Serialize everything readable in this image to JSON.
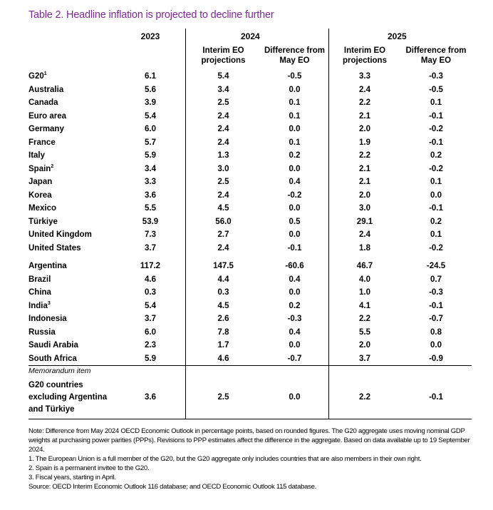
{
  "title": "Table 2. Headline inflation is projected to decline further",
  "years": {
    "y2023": "2023",
    "y2024": "2024",
    "y2025": "2025"
  },
  "sub": {
    "interim_1": "Interim EO",
    "interim_2": "projections",
    "diff_1": "Difference from",
    "diff_2": "May EO"
  },
  "group1": [
    {
      "name": "G20",
      "sup": "1",
      "indent": false,
      "v2023": "6.1",
      "p2024": "5.4",
      "d2024": "-0.5",
      "p2025": "3.3",
      "d2025": "-0.3"
    },
    {
      "name": "Australia",
      "sup": "",
      "indent": false,
      "v2023": "5.6",
      "p2024": "3.4",
      "d2024": "0.0",
      "p2025": "2.4",
      "d2025": "-0.5"
    },
    {
      "name": "Canada",
      "sup": "",
      "indent": false,
      "v2023": "3.9",
      "p2024": "2.5",
      "d2024": "0.1",
      "p2025": "2.2",
      "d2025": "0.1"
    },
    {
      "name": "Euro area",
      "sup": "",
      "indent": false,
      "v2023": "5.4",
      "p2024": "2.4",
      "d2024": "0.1",
      "p2025": "2.1",
      "d2025": "-0.1"
    },
    {
      "name": "Germany",
      "sup": "",
      "indent": true,
      "v2023": "6.0",
      "p2024": "2.4",
      "d2024": "0.0",
      "p2025": "2.0",
      "d2025": "-0.2"
    },
    {
      "name": "France",
      "sup": "",
      "indent": true,
      "v2023": "5.7",
      "p2024": "2.4",
      "d2024": "0.1",
      "p2025": "1.9",
      "d2025": "-0.1"
    },
    {
      "name": "Italy",
      "sup": "",
      "indent": true,
      "v2023": "5.9",
      "p2024": "1.3",
      "d2024": "0.2",
      "p2025": "2.2",
      "d2025": "0.2"
    },
    {
      "name": "Spain",
      "sup": "2",
      "indent": true,
      "v2023": "3.4",
      "p2024": "3.0",
      "d2024": "0.0",
      "p2025": "2.1",
      "d2025": "-0.2"
    },
    {
      "name": "Japan",
      "sup": "",
      "indent": false,
      "v2023": "3.3",
      "p2024": "2.5",
      "d2024": "0.4",
      "p2025": "2.1",
      "d2025": "0.1"
    },
    {
      "name": "Korea",
      "sup": "",
      "indent": false,
      "v2023": "3.6",
      "p2024": "2.4",
      "d2024": "-0.2",
      "p2025": "2.0",
      "d2025": "0.0"
    },
    {
      "name": "Mexico",
      "sup": "",
      "indent": false,
      "v2023": "5.5",
      "p2024": "4.5",
      "d2024": "0.0",
      "p2025": "3.0",
      "d2025": "-0.1"
    },
    {
      "name": "Türkiye",
      "sup": "",
      "indent": false,
      "v2023": "53.9",
      "p2024": "56.0",
      "d2024": "0.5",
      "p2025": "29.1",
      "d2025": "0.2"
    },
    {
      "name": "United Kingdom",
      "sup": "",
      "indent": false,
      "v2023": "7.3",
      "p2024": "2.7",
      "d2024": "0.0",
      "p2025": "2.4",
      "d2025": "0.1"
    },
    {
      "name": "United States",
      "sup": "",
      "indent": false,
      "v2023": "3.7",
      "p2024": "2.4",
      "d2024": "-0.1",
      "p2025": "1.8",
      "d2025": "-0.2"
    }
  ],
  "group2": [
    {
      "name": "Argentina",
      "sup": "",
      "indent": false,
      "v2023": "117.2",
      "p2024": "147.5",
      "d2024": "-60.6",
      "p2025": "46.7",
      "d2025": "-24.5"
    },
    {
      "name": "Brazil",
      "sup": "",
      "indent": false,
      "v2023": "4.6",
      "p2024": "4.4",
      "d2024": "0.4",
      "p2025": "4.0",
      "d2025": "0.7"
    },
    {
      "name": "China",
      "sup": "",
      "indent": false,
      "v2023": "0.3",
      "p2024": "0.3",
      "d2024": "0.0",
      "p2025": "1.0",
      "d2025": "-0.3"
    },
    {
      "name": "India",
      "sup": "3",
      "indent": false,
      "v2023": "5.4",
      "p2024": "4.5",
      "d2024": "0.2",
      "p2025": "4.1",
      "d2025": "-0.1"
    },
    {
      "name": "Indonesia",
      "sup": "",
      "indent": false,
      "v2023": "3.7",
      "p2024": "2.6",
      "d2024": "-0.3",
      "p2025": "2.2",
      "d2025": "-0.7"
    },
    {
      "name": "Russia",
      "sup": "",
      "indent": false,
      "v2023": "6.0",
      "p2024": "7.8",
      "d2024": "0.4",
      "p2025": "5.5",
      "d2025": "0.8"
    },
    {
      "name": "Saudi Arabia",
      "sup": "",
      "indent": false,
      "v2023": "2.3",
      "p2024": "1.7",
      "d2024": "0.0",
      "p2025": "2.0",
      "d2025": "0.0"
    },
    {
      "name": "South Africa",
      "sup": "",
      "indent": false,
      "v2023": "5.9",
      "p2024": "4.6",
      "d2024": "-0.7",
      "p2025": "3.7",
      "d2025": "-0.9"
    }
  ],
  "memo_label": "Memorandum item",
  "memo": {
    "name_1": "G20 countries",
    "name_2": "excluding Argentina",
    "name_3": "and Türkiye",
    "v2023": "3.6",
    "p2024": "2.5",
    "d2024": "0.0",
    "p2025": "2.2",
    "d2025": "-0.1"
  },
  "notes": [
    "Note: Difference from May 2024 OECD Economic Outlook in percentage points, based on rounded figures. The G20 aggregate uses moving nominal GDP weights at purchasing power parities (PPPs). Revisions to PPP estimates affect the difference in the aggregate. Based on data available up to 19 September 2024.",
    "1.   The European Union is a full member of the G20, but the G20 aggregate only includes countries that are also members in their own right.",
    "2.   Spain is a permanent invitee to the G20.",
    "3.   Fiscal years, starting in April.",
    "Source: OECD Interim Economic Outlook 116 database; and OECD Economic Outlook 115 database."
  ]
}
